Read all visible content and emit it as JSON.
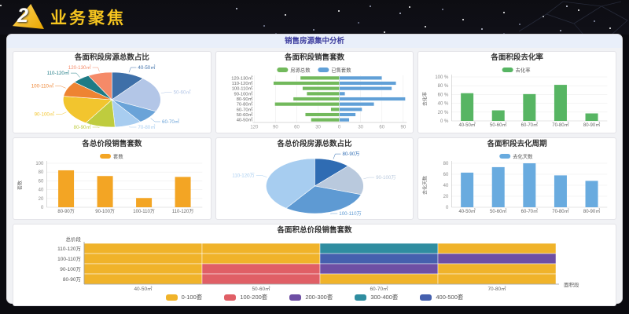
{
  "header": {
    "logo_number": "2",
    "app_title": "业务聚焦"
  },
  "main": {
    "title": "销售房源集中分析"
  },
  "chart_data": [
    {
      "type": "pie",
      "title": "各面积段房源总数占比",
      "labels": [
        "40-50㎡",
        "50-60㎡",
        "60-70㎡",
        "70-80㎡",
        "80-90㎡",
        "90-100㎡",
        "100-110㎡",
        "110-120㎡",
        "120-130㎡"
      ],
      "values": [
        11,
        21,
        8,
        9,
        10,
        18,
        9,
        6,
        8
      ],
      "colors": [
        "#3e6fa8",
        "#b3c6e7",
        "#6aa3d8",
        "#a8cdf0",
        "#bfcc3e",
        "#f2c52e",
        "#ee8432",
        "#1e7b85",
        "#f58a68"
      ]
    },
    {
      "type": "tornado",
      "title": "各面积段销售套数",
      "categories": [
        "120-130㎡",
        "110-120㎡",
        "100-110㎡",
        "90-100㎡",
        "80-90㎡",
        "70-80㎡",
        "60-70㎡",
        "50-60㎡",
        "40-50㎡"
      ],
      "series": [
        {
          "name": "房源总数",
          "color": "#72b95c",
          "values": [
            55,
            93,
            52,
            46,
            65,
            91,
            12,
            48,
            40
          ]
        },
        {
          "name": "已售套数",
          "color": "#61a0d7",
          "values": [
            60,
            80,
            74,
            8,
            93,
            49,
            32,
            23,
            14
          ]
        }
      ],
      "xticks": [
        -120,
        -90,
        -60,
        -30,
        0,
        30,
        60,
        90
      ],
      "left_max": 120,
      "right_max": 95
    },
    {
      "type": "bar",
      "title": "各面积段去化率",
      "legend": "去化率",
      "ylabel": "去化率",
      "color": "#57b563",
      "categories": [
        "40-50㎡",
        "50-60㎡",
        "60-70㎡",
        "70-80㎡",
        "80-90㎡"
      ],
      "values": [
        63,
        24,
        61,
        82,
        17
      ],
      "ymax": 100,
      "ystep": 20,
      "ysuffix": " %"
    },
    {
      "type": "bar",
      "title": "各总价段销售套数",
      "legend": "套数",
      "ylabel": "套数",
      "color": "#f3a524",
      "categories": [
        "80-90万",
        "90-100万",
        "100-110万",
        "110-120万"
      ],
      "values": [
        84,
        71,
        21,
        69
      ],
      "ymax": 100,
      "ystep": 20,
      "ysuffix": ""
    },
    {
      "type": "pie",
      "title": "各总价段房源总数占比",
      "labels": [
        "80-90万",
        "90-100万",
        "100-110万",
        "110-120万"
      ],
      "values": [
        12,
        18,
        30,
        40
      ],
      "colors": [
        "#2f6cb3",
        "#b9c9dd",
        "#5e9ad3",
        "#a7cdf0"
      ]
    },
    {
      "type": "bar",
      "title": "各面积段去化周期",
      "legend": "去化天数",
      "ylabel": "去化天数",
      "color": "#69abdf",
      "categories": [
        "40-50㎡",
        "50-60㎡",
        "60-70㎡",
        "70-80㎡",
        "80-90㎡"
      ],
      "values": [
        63,
        73,
        80,
        58,
        48
      ],
      "ymax": 80,
      "ystep": 20,
      "ysuffix": ""
    },
    {
      "type": "matrix",
      "title": "各面积总价段销售套数",
      "corner_label": "总价段",
      "axis_label": "面积段",
      "x_categories": [
        "40-50㎡",
        "50-60㎡",
        "60-70㎡",
        "70-80㎡"
      ],
      "y_categories": [
        "110-120万",
        "100-110万",
        "90-100万",
        "80-90万"
      ],
      "cells": [
        [
          0,
          0,
          3,
          0
        ],
        [
          0,
          0,
          4,
          2
        ],
        [
          0,
          1,
          2,
          0
        ],
        [
          0,
          1,
          0,
          0
        ]
      ],
      "legend": [
        {
          "label": "0-100套",
          "color": "#f0b32a"
        },
        {
          "label": "100-200套",
          "color": "#e05f66"
        },
        {
          "label": "200-300套",
          "color": "#6e4fa4"
        },
        {
          "label": "300-400套",
          "color": "#2f8da0"
        },
        {
          "label": "400-500套",
          "color": "#4560ae"
        }
      ]
    }
  ]
}
